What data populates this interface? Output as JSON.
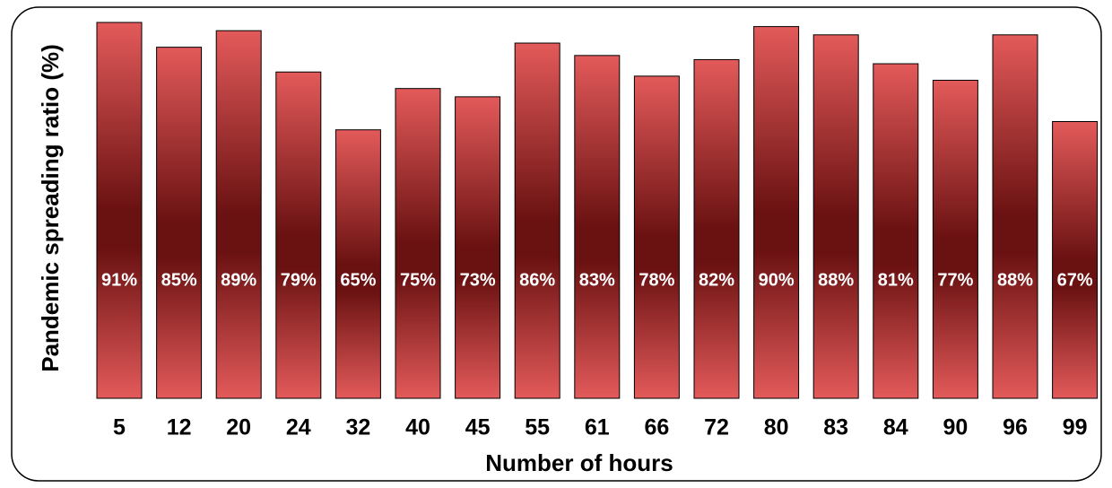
{
  "chart_data": {
    "type": "bar",
    "x_label": "Number of hours",
    "y_label": "Pandemic spreading ratio (%)",
    "categories": [
      "5",
      "12",
      "20",
      "24",
      "32",
      "40",
      "45",
      "55",
      "61",
      "66",
      "72",
      "80",
      "83",
      "84",
      "90",
      "96",
      "99"
    ],
    "values": [
      91,
      85,
      89,
      79,
      65,
      75,
      73,
      86,
      83,
      78,
      82,
      90,
      88,
      81,
      77,
      88,
      67
    ],
    "value_labels": [
      "91%",
      "85%",
      "89%",
      "79%",
      "65%",
      "75%",
      "73%",
      "86%",
      "83%",
      "78%",
      "82%",
      "90%",
      "88%",
      "81%",
      "77%",
      "88%",
      "67%"
    ],
    "color": "#e35a5a"
  }
}
